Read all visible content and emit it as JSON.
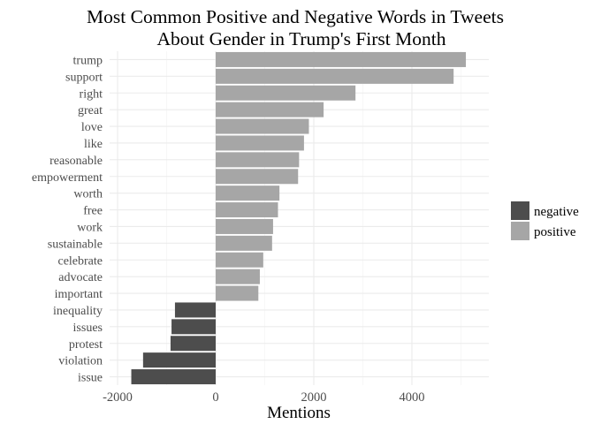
{
  "chart_data": {
    "type": "bar",
    "orientation": "horizontal",
    "title_lines": [
      "Most Common Positive and Negative Words in Tweets",
      "About Gender in Trump's First Month"
    ],
    "xlabel": "Mentions",
    "ylabel": "",
    "xlim": [
      -2000,
      5600
    ],
    "x_ticks": [
      {
        "value": -2000,
        "label": "-2000"
      },
      {
        "value": 0,
        "label": "0"
      },
      {
        "value": 2000,
        "label": "2000"
      },
      {
        "value": 4000,
        "label": "4000"
      }
    ],
    "grid": true,
    "legend": {
      "placement": "right",
      "entries": [
        {
          "label": "negative",
          "color": "#4d4d4d"
        },
        {
          "label": "positive",
          "color": "#a6a6a6"
        }
      ]
    },
    "categories": [
      "trump",
      "support",
      "right",
      "great",
      "love",
      "like",
      "reasonable",
      "empowerment",
      "worth",
      "free",
      "work",
      "sustainable",
      "celebrate",
      "advocate",
      "important",
      "inequality",
      "issues",
      "protest",
      "violation",
      "issue"
    ],
    "values": [
      5100,
      4850,
      2850,
      2200,
      1900,
      1800,
      1700,
      1680,
      1300,
      1270,
      1170,
      1150,
      970,
      900,
      870,
      -830,
      -900,
      -920,
      -1480,
      -1720
    ],
    "sentiment": [
      "positive",
      "positive",
      "positive",
      "positive",
      "positive",
      "positive",
      "positive",
      "positive",
      "positive",
      "positive",
      "positive",
      "positive",
      "positive",
      "positive",
      "positive",
      "negative",
      "negative",
      "negative",
      "negative",
      "negative"
    ]
  }
}
